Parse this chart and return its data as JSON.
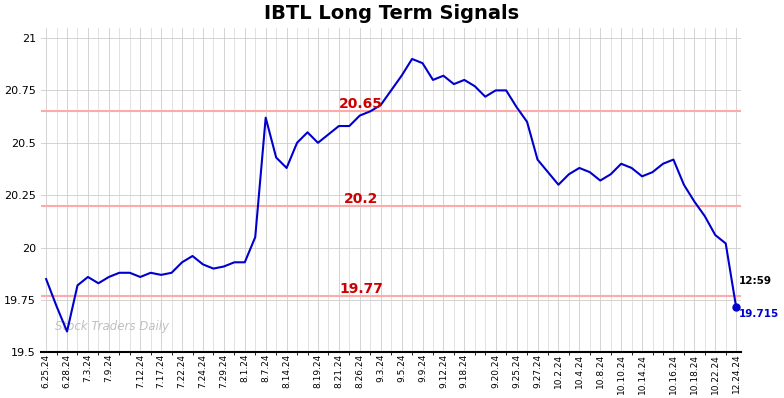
{
  "title": "IBTL Long Term Signals",
  "title_fontsize": 14,
  "title_fontweight": "bold",
  "line_color": "#0000cc",
  "line_width": 1.5,
  "background_color": "#ffffff",
  "grid_color": "#cccccc",
  "watermark": "Stock Traders Daily",
  "hlines": [
    20.65,
    20.2,
    19.77
  ],
  "hline_color": "#ffaaaa",
  "hline_label_color": "#cc0000",
  "ylim": [
    19.5,
    21.05
  ],
  "last_price": 19.715,
  "last_time": "12:59",
  "last_dot_color": "#0000cc",
  "xdata": [
    19.85,
    19.72,
    19.6,
    19.82,
    19.86,
    19.83,
    19.86,
    19.88,
    19.88,
    19.86,
    19.88,
    19.87,
    19.88,
    19.93,
    19.96,
    19.92,
    19.9,
    19.91,
    19.93,
    19.93,
    20.05,
    20.62,
    20.43,
    20.38,
    20.5,
    20.55,
    20.5,
    20.54,
    20.58,
    20.58,
    20.63,
    20.65,
    20.68,
    20.75,
    20.82,
    20.9,
    20.88,
    20.8,
    20.82,
    20.78,
    20.8,
    20.77,
    20.72,
    20.75,
    20.75,
    20.67,
    20.6,
    20.42,
    20.36,
    20.3,
    20.35,
    20.38,
    20.36,
    20.32,
    20.35,
    20.4,
    20.38,
    20.34,
    20.36,
    20.4,
    20.42,
    20.3,
    20.22,
    20.15,
    20.06,
    20.02,
    19.715
  ],
  "xlabels": [
    "6.25.24",
    "6.28.24",
    "7.3.24",
    "7.9.24",
    "7.12.24",
    "7.17.24",
    "7.22.24",
    "7.24.24",
    "7.29.24",
    "8.1.24",
    "8.7.24",
    "8.14.24",
    "8.19.24",
    "8.21.24",
    "8.26.24",
    "9.3.24",
    "9.5.24",
    "9.9.24",
    "9.12.24",
    "9.18.24",
    "9.20.24",
    "9.25.24",
    "9.27.24",
    "10.2.24",
    "10.4.24",
    "10.8.24",
    "10.10.24",
    "10.14.24",
    "10.16.24",
    "10.18.24",
    "10.22.24",
    "12.24.24"
  ]
}
